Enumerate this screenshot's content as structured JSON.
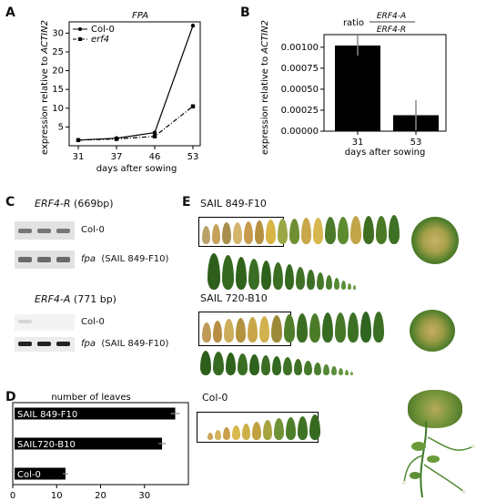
{
  "panels": {
    "A": {
      "letter": "A",
      "title": "FPA",
      "ylabel": "expression relative to ACTIN2",
      "xlabel": "days after sowing",
      "legend": [
        "Col-0",
        "erf4"
      ]
    },
    "B": {
      "letter": "B",
      "ratio_prefix": "ratio",
      "ratio_num": "ERF4-A",
      "ratio_den": "ERF4-R",
      "ylabel": "expression relative to ACTIN2",
      "xlabel": "days after sowing"
    },
    "C": {
      "letter": "C",
      "gel1_title_gene": "ERF4-R",
      "gel1_title_size": "(669bp)",
      "gel1_lane1": "Col-0",
      "gel1_lane2_gene": "fpa",
      "gel1_lane2_line": "(SAIL 849-F10)",
      "gel2_title_gene": "ERF4-A",
      "gel2_title_size": "(771 bp)",
      "gel2_lane1": "Col-0",
      "gel2_lane2_gene": "fpa",
      "gel2_lane2_line": "(SAIL 849-F10)"
    },
    "D": {
      "letter": "D",
      "title": "number of leaves"
    },
    "E": {
      "letter": "E",
      "row1": "SAIL 849-F10",
      "row2": "SAIL 720-B10",
      "row3": "Col-0"
    }
  },
  "chart_data": [
    {
      "type": "line",
      "title": "FPA",
      "xlabel": "days after sowing",
      "ylabel": "expression relative to ACTIN2",
      "x": [
        31,
        37,
        46,
        53
      ],
      "xticks": [
        31,
        37,
        46,
        53
      ],
      "yticks": [
        5,
        10,
        15,
        20,
        25,
        30
      ],
      "ylim": [
        0,
        33
      ],
      "series": [
        {
          "name": "Col-0",
          "values": [
            1.5,
            2.0,
            3.5,
            32.0
          ],
          "style": "solid",
          "marker": "circle"
        },
        {
          "name": "erf4",
          "values": [
            1.5,
            1.8,
            2.5,
            10.5
          ],
          "style": "dash-dot",
          "marker": "square"
        }
      ],
      "legend_position": "top-left"
    },
    {
      "type": "bar",
      "xlabel": "days after sowing",
      "ylabel": "expression relative to ACTIN2",
      "categories": [
        "31",
        "53"
      ],
      "values": [
        0.00102,
        0.00019
      ],
      "errors": [
        0.00012,
        0.00018
      ],
      "yticks": [
        "0.00000",
        "0.00025",
        "0.00050",
        "0.00075",
        "0.00100"
      ],
      "ylim": [
        0,
        0.00115
      ],
      "color": "#000000"
    },
    {
      "type": "bar",
      "orientation": "horizontal",
      "title": "number of leaves",
      "categories": [
        "SAIL 849-F10",
        "SAIL720-B10",
        "Col-0"
      ],
      "values": [
        37,
        34,
        12
      ],
      "errors": [
        1,
        0.8,
        0.6
      ],
      "xticks": [
        0,
        10,
        20,
        30
      ],
      "xlim": [
        0,
        40
      ],
      "color": "#000000"
    }
  ]
}
